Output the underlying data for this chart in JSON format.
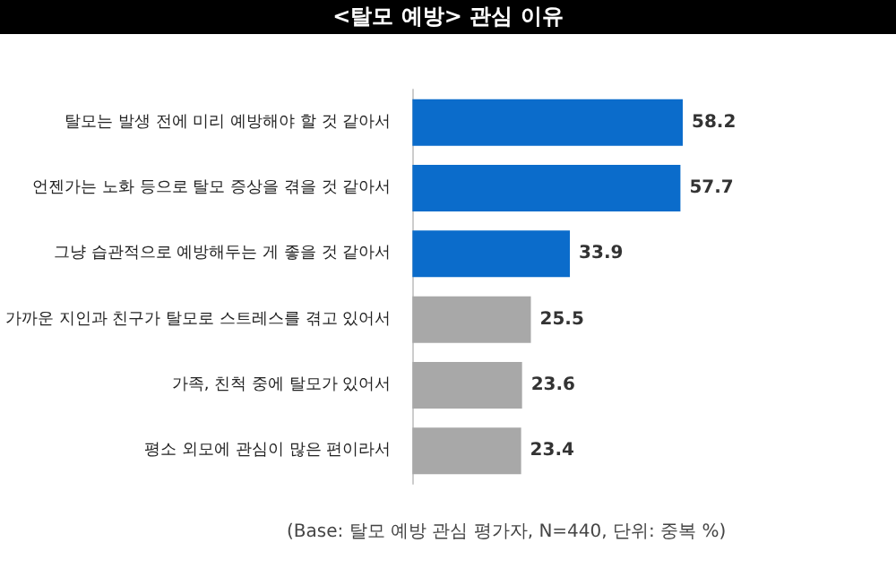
{
  "chart_data": {
    "type": "bar",
    "orientation": "horizontal",
    "title": "<탈모 예방> 관심 이유",
    "categories": [
      "탈모는 발생 전에 미리 예방해야 할 것 같아서",
      "언젠가는 노화 등으로 탈모 증상을 겪을 것 같아서",
      "그냥 습관적으로 예방해두는 게 좋을 것 같아서",
      "가까운 지인과 친구가 탈모로 스트레스를 겪고 있어서",
      "가족, 친척 중에 탈모가 있어서",
      "평소 외모에 관심이 많은 편이라서"
    ],
    "values": [
      58.2,
      57.7,
      33.9,
      25.5,
      23.6,
      23.4
    ],
    "colors": [
      "#0b6ccb",
      "#0b6ccb",
      "#0b6ccb",
      "#a8a8a8",
      "#a8a8a8",
      "#a8a8a8"
    ],
    "data_labels": true,
    "annotations": [
      "(Base: 탈모 예방 관심 평가자, N=440, 단위: 중복 %)"
    ]
  }
}
